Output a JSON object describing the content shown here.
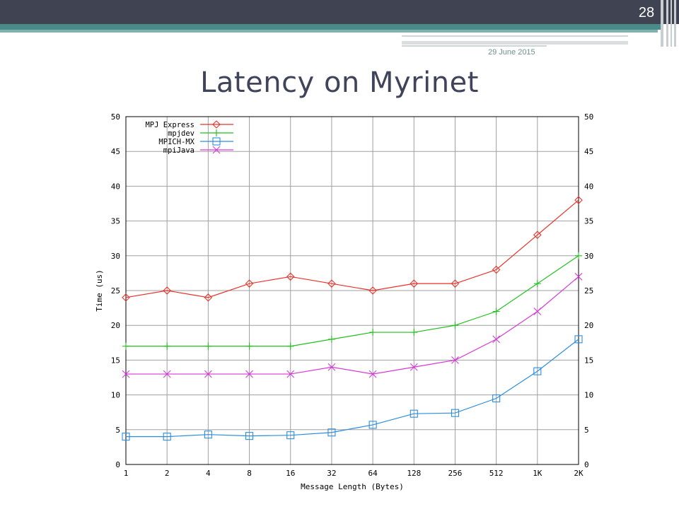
{
  "slide": {
    "number": "28",
    "date": "29 June 2015",
    "title": "Latency on Myrinet"
  },
  "colors": {
    "topbar": "#404352",
    "accent_teal": "#4a8a88",
    "title": "#40445a"
  },
  "chart_data": {
    "type": "line",
    "xlabel": "Message Length (Bytes)",
    "ylabel": "Time (us)",
    "ylim": [
      0,
      50
    ],
    "yticks": [
      "0",
      "5",
      "10",
      "15",
      "20",
      "25",
      "30",
      "35",
      "40",
      "45",
      "50"
    ],
    "categories": [
      "1",
      "2",
      "4",
      "8",
      "16",
      "32",
      "64",
      "128",
      "256",
      "512",
      "1K",
      "2K"
    ],
    "grid": true,
    "legend_position": "top-left",
    "series": [
      {
        "name": "MPJ Express",
        "color": "#e8322a",
        "marker": "diamond",
        "values": [
          24,
          25,
          24,
          26,
          27,
          26,
          25,
          26,
          26,
          28,
          33,
          38
        ]
      },
      {
        "name": "mpjdev",
        "color": "#22c01e",
        "marker": "plus",
        "values": [
          17,
          17,
          17,
          17,
          17,
          18,
          19,
          19,
          20,
          22,
          26,
          30
        ]
      },
      {
        "name": "MPICH-MX",
        "color": "#2a8ee0",
        "marker": "square",
        "values": [
          4,
          4,
          4.3,
          4.1,
          4.2,
          4.6,
          5.7,
          7.3,
          7.4,
          9.5,
          13.4,
          18
        ]
      },
      {
        "name": "mpiJava",
        "color": "#d63ad6",
        "marker": "x",
        "values": [
          13,
          13,
          13,
          13,
          13,
          14,
          13,
          14,
          15,
          18,
          22,
          27
        ]
      }
    ]
  }
}
